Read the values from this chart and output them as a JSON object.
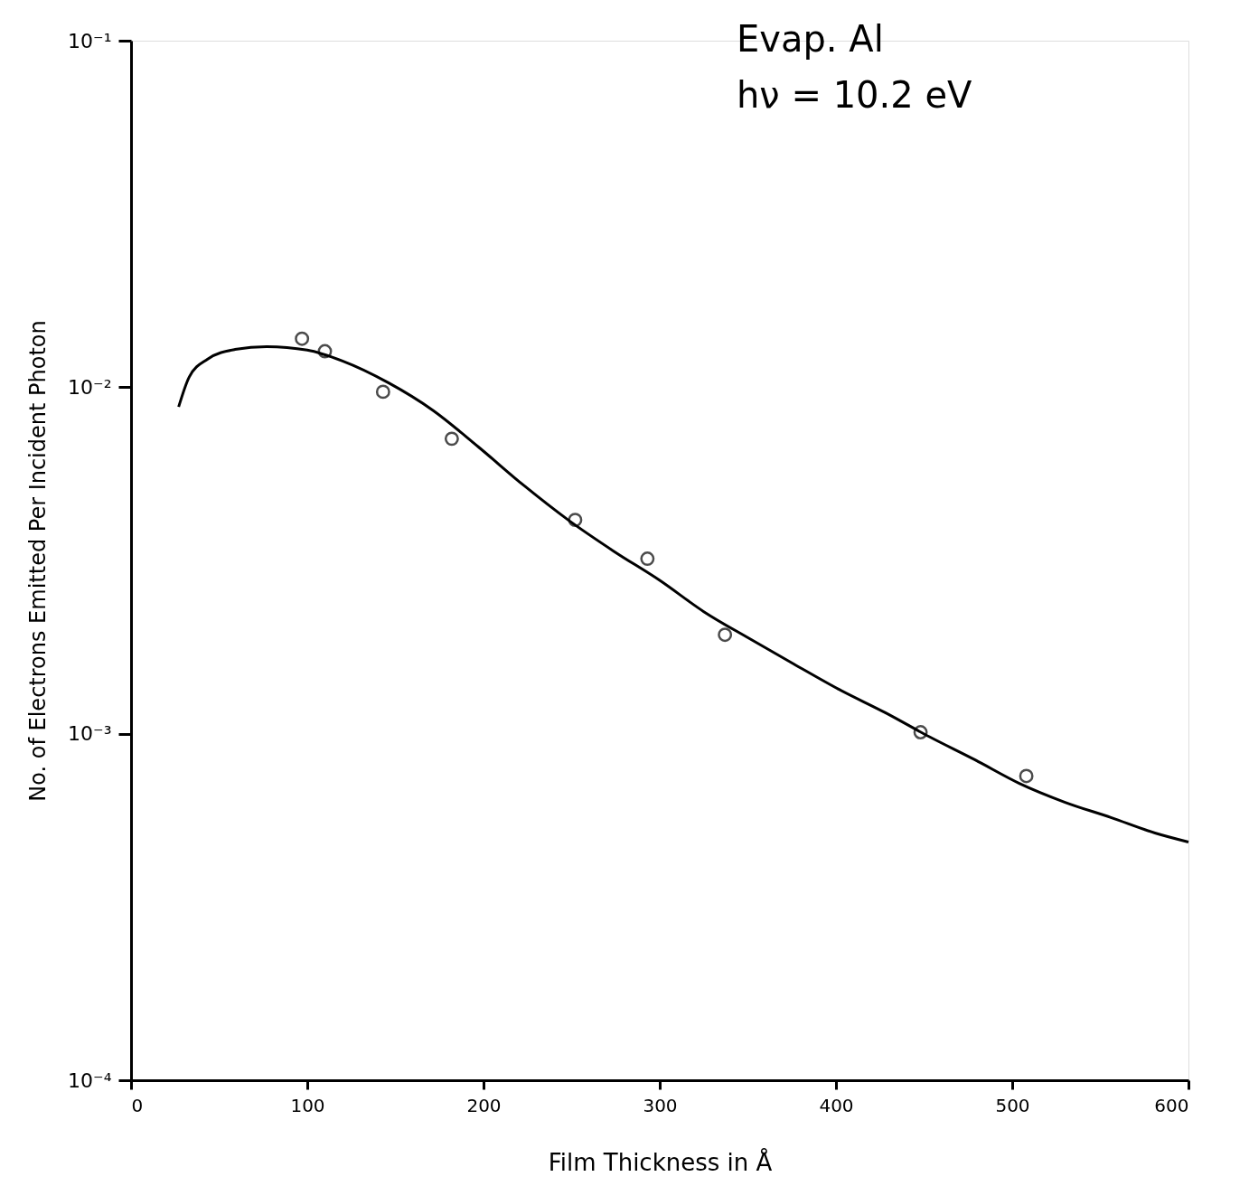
{
  "chart_data": {
    "type": "scatter",
    "xlabel": "Film Thickness in Å",
    "ylabel": "No. of Electrons Emitted Per Incident Photon",
    "annotations": [
      "Evap. Al",
      "hν = 10.2 eV"
    ],
    "xlim": [
      0,
      600
    ],
    "xticks": [
      0,
      100,
      200,
      300,
      400,
      500,
      600
    ],
    "ylim": [
      0.0001,
      0.1
    ],
    "yticks": [
      {
        "value": 0.0001,
        "label": "10⁻⁴"
      },
      {
        "value": 0.001,
        "label": "10⁻³"
      },
      {
        "value": 0.01,
        "label": "10⁻²"
      },
      {
        "value": 0.1,
        "label": "10⁻¹"
      }
    ],
    "log": "y",
    "grid": false,
    "series": [
      {
        "marker": "circle",
        "color": "#000000",
        "x": [
          97,
          110,
          143,
          182,
          252,
          293,
          337,
          448,
          508
        ],
        "values": [
          0.0138,
          0.0127,
          0.0097,
          0.0071,
          0.00414,
          0.0032,
          0.00193,
          0.00101,
          0.000755
        ]
      },
      {
        "type": "line",
        "marker": "none",
        "line_style": "solid",
        "color": "#000000",
        "x": [
          27,
          33,
          43.5,
          59,
          77,
          100,
          120,
          146,
          171.5,
          197,
          223,
          248,
          274,
          300,
          325,
          351,
          376,
          402,
          428,
          453,
          479,
          504,
          530,
          556,
          581,
          600
        ],
        "values": [
          0.00877,
          0.0107,
          0.01205,
          0.01285,
          0.0131,
          0.0128,
          0.0119,
          0.0103,
          0.00856,
          0.00673,
          0.0052,
          0.00414,
          0.00336,
          0.00277,
          0.00225,
          0.00188,
          0.00159,
          0.00134,
          0.00115,
          0.00098,
          0.00084,
          0.000719,
          0.000634,
          0.000573,
          0.000517,
          0.000487
        ]
      }
    ]
  }
}
